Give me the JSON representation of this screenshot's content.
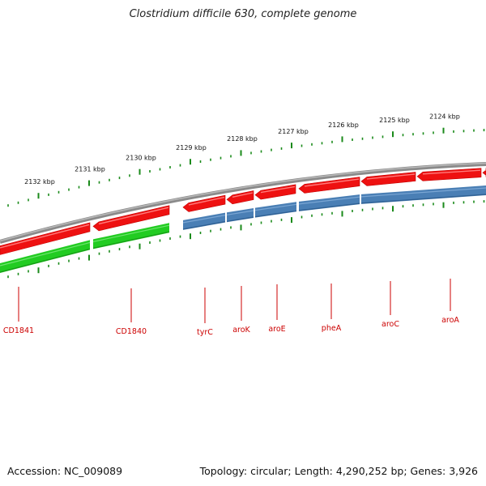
{
  "title": "Clostridium difficile 630, complete genome",
  "footer": {
    "accession": "Accession: NC_009089",
    "stats": "Topology: circular; Length: 4,290,252 bp; Genes: 3,926"
  },
  "scale_labels": [
    "2132 kbp",
    "2131 kbp",
    "2130 kbp",
    "2129 kbp",
    "2128 kbp",
    "2127 kbp",
    "2126 kbp",
    "2125 kbp",
    "2124 kbp"
  ],
  "genes": [
    {
      "name": "CD1841"
    },
    {
      "name": "CD1840"
    },
    {
      "name": "tyrC"
    },
    {
      "name": "aroK"
    },
    {
      "name": "aroE"
    },
    {
      "name": "pheA"
    },
    {
      "name": "aroC"
    },
    {
      "name": "aroA"
    }
  ],
  "colors": {
    "forward_feature": "#ee1111",
    "cds_green": "#22cc22",
    "cds_blue": "#4a7fb5",
    "backbone": "#8a8a8a",
    "tick": "#1a8a1a",
    "gene_label": "#cc0000"
  }
}
